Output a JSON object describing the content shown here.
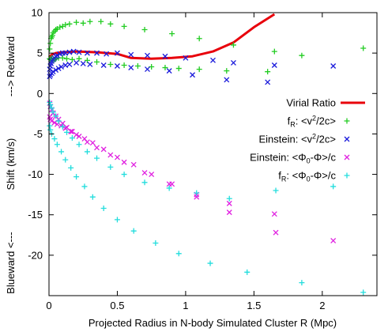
{
  "chart_data": {
    "type": "scatter",
    "title": "",
    "xlabel": "Projected Radius in N-body Simulated Cluster R (Mpc)",
    "ylabel_parts": [
      "Blueward <---",
      "Shift (km/s)",
      "---> Redward"
    ],
    "xlim": [
      0,
      2.4
    ],
    "ylim": [
      -25,
      10
    ],
    "x_ticks": [
      0,
      0.5,
      1,
      1.5,
      2
    ],
    "x_tick_labels": [
      "0",
      "0.5",
      "1",
      "1.5",
      "2"
    ],
    "y_ticks": [
      -20,
      -15,
      -10,
      -5,
      0,
      5,
      10
    ],
    "y_tick_labels": [
      "-20",
      "-15",
      "-10",
      "-5",
      "0",
      "5",
      "10"
    ],
    "grid": false,
    "legend_position": "right-center",
    "legend": [
      {
        "label": "Virial Ratio",
        "sub": "",
        "marker": "line",
        "color": "#e8000b"
      },
      {
        "label": "f",
        "sub": "R",
        "tail": ":   <v",
        "sup": "2",
        "tail2": "/2c>",
        "marker": "plus",
        "color": "#22cc22"
      },
      {
        "label": "Einstein:  <v",
        "sub": "",
        "sup": "2",
        "tail2": "/2c>",
        "marker": "cross",
        "color": "#1a1adb"
      },
      {
        "label": "Einstein:  <Φ",
        "sub0": "0",
        "mid": "-Φ>/c",
        "marker": "cross",
        "color": "#e020e0"
      },
      {
        "label": "f",
        "sub": "R",
        "tail": ":     <Φ",
        "sub0": "0",
        "mid": "-Φ>/c",
        "marker": "plus",
        "color": "#22dddd"
      }
    ],
    "series": [
      {
        "name": "Virial Ratio",
        "kind": "line",
        "color": "#e8000b",
        "x": [
          0,
          0.02,
          0.05,
          0.1,
          0.2,
          0.35,
          0.5,
          0.6,
          0.75,
          0.9,
          1.05,
          1.2,
          1.35,
          1.5,
          1.65
        ],
        "y": [
          4.5,
          4.8,
          5.0,
          5.1,
          5.2,
          5.1,
          4.9,
          4.4,
          4.3,
          4.4,
          4.6,
          5.2,
          6.3,
          8.2,
          9.8
        ]
      },
      {
        "name": "fR <v2/2c>",
        "kind": "plus",
        "color": "#22cc22",
        "x": [
          0.005,
          0.01,
          0.015,
          0.02,
          0.025,
          0.03,
          0.04,
          0.05,
          0.06,
          0.08,
          0.1,
          0.12,
          0.15,
          0.2,
          0.25,
          0.3,
          0.38,
          0.45,
          0.55,
          0.7,
          0.9,
          1.1,
          1.35,
          1.65,
          1.85,
          2.3,
          0.005,
          0.01,
          0.02,
          0.03,
          0.04,
          0.05,
          0.07,
          0.1,
          0.13,
          0.17,
          0.22,
          0.28,
          0.35,
          0.45,
          0.55,
          0.65,
          0.75,
          0.85,
          0.95,
          1.1,
          1.3,
          1.6
        ],
        "y": [
          5.5,
          6.2,
          6.8,
          7.0,
          7.2,
          7.5,
          7.7,
          7.9,
          8.0,
          8.2,
          8.3,
          8.5,
          8.6,
          8.8,
          8.7,
          8.9,
          8.9,
          8.6,
          8.3,
          7.9,
          7.4,
          6.8,
          6.0,
          5.2,
          4.7,
          5.6,
          4.3,
          4.2,
          4.4,
          4.1,
          4.2,
          4.3,
          4.4,
          4.4,
          4.3,
          4.2,
          4.3,
          4.1,
          3.9,
          3.6,
          3.5,
          3.4,
          3.3,
          3.2,
          3.1,
          3.0,
          2.8,
          2.7
        ]
      },
      {
        "name": "Einstein <v2/2c>",
        "kind": "cross",
        "color": "#1a1adb",
        "x": [
          0.005,
          0.01,
          0.015,
          0.02,
          0.03,
          0.04,
          0.05,
          0.06,
          0.08,
          0.1,
          0.12,
          0.15,
          0.18,
          0.22,
          0.28,
          0.35,
          0.42,
          0.5,
          0.6,
          0.72,
          0.85,
          1.0,
          1.2,
          1.35,
          1.65,
          2.08,
          0.005,
          0.01,
          0.02,
          0.03,
          0.05,
          0.07,
          0.09,
          0.12,
          0.15,
          0.2,
          0.25,
          0.3,
          0.4,
          0.5,
          0.6,
          0.72,
          0.88,
          1.05,
          1.3,
          1.6
        ],
        "y": [
          3.0,
          3.4,
          3.7,
          4.0,
          4.2,
          4.4,
          4.6,
          4.7,
          4.9,
          5.0,
          5.0,
          5.1,
          5.2,
          5.1,
          5.0,
          5.0,
          4.9,
          5.0,
          4.8,
          4.7,
          4.6,
          4.4,
          4.1,
          3.8,
          3.5,
          3.4,
          2.1,
          2.3,
          2.5,
          2.7,
          2.9,
          3.1,
          3.3,
          3.5,
          3.6,
          3.8,
          3.7,
          3.6,
          3.5,
          3.4,
          3.2,
          3.0,
          2.8,
          2.3,
          1.7,
          1.4
        ]
      },
      {
        "name": "Einstein <Phi0-Phi>/c",
        "kind": "cross",
        "color": "#e020e0",
        "x": [
          0.005,
          0.01,
          0.02,
          0.03,
          0.05,
          0.07,
          0.1,
          0.13,
          0.17,
          0.22,
          0.28,
          0.35,
          0.45,
          0.55,
          0.7,
          0.88,
          1.08,
          1.32,
          1.66,
          2.08,
          0.005,
          0.01,
          0.02,
          0.04,
          0.06,
          0.09,
          0.12,
          0.16,
          0.2,
          0.26,
          0.32,
          0.4,
          0.5,
          0.62,
          0.75,
          0.9,
          1.08,
          1.32,
          1.65
        ],
        "y": [
          -1.2,
          -1.6,
          -2.0,
          -2.4,
          -2.8,
          -3.2,
          -3.7,
          -4.2,
          -4.7,
          -5.3,
          -6.0,
          -6.7,
          -7.6,
          -8.5,
          -9.8,
          -11.2,
          -12.8,
          -14.7,
          -17.2,
          -18.2,
          -2.9,
          -3.2,
          -3.4,
          -3.6,
          -3.8,
          -4.0,
          -4.3,
          -4.7,
          -5.1,
          -5.6,
          -6.1,
          -6.9,
          -7.9,
          -8.8,
          -10.0,
          -11.2,
          -12.5,
          -13.6,
          -14.9
        ]
      },
      {
        "name": "fR <Phi0-Phi>/c",
        "kind": "plus",
        "color": "#22dddd",
        "x": [
          0.005,
          0.01,
          0.02,
          0.03,
          0.05,
          0.07,
          0.1,
          0.13,
          0.17,
          0.22,
          0.28,
          0.35,
          0.45,
          0.55,
          0.7,
          0.88,
          1.08,
          1.32,
          1.66,
          2.08,
          0.005,
          0.01,
          0.02,
          0.04,
          0.06,
          0.09,
          0.12,
          0.16,
          0.2,
          0.26,
          0.32,
          0.4,
          0.5,
          0.62,
          0.78,
          0.95,
          1.18,
          1.45,
          1.85,
          2.3
        ],
        "y": [
          -1.1,
          -1.4,
          -1.8,
          -2.3,
          -2.8,
          -3.4,
          -4.1,
          -4.8,
          -5.5,
          -6.3,
          -7.2,
          -8.0,
          -9.1,
          -10.0,
          -11.0,
          -11.7,
          -12.3,
          -13.0,
          -12.0,
          -11.5,
          -4.0,
          -4.5,
          -5.0,
          -5.6,
          -6.3,
          -7.2,
          -8.2,
          -9.2,
          -10.3,
          -11.5,
          -12.8,
          -14.2,
          -15.6,
          -17.0,
          -18.5,
          -19.8,
          -21.0,
          -22.1,
          -23.4,
          -24.6
        ]
      }
    ]
  }
}
